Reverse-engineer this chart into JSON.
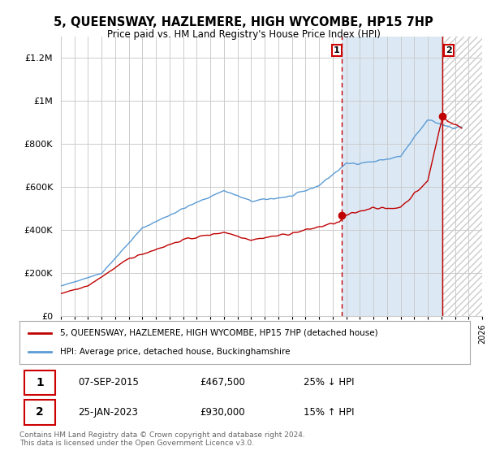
{
  "title": "5, QUEENSWAY, HAZLEMERE, HIGH WYCOMBE, HP15 7HP",
  "subtitle": "Price paid vs. HM Land Registry's House Price Index (HPI)",
  "legend_line1": "5, QUEENSWAY, HAZLEMERE, HIGH WYCOMBE, HP15 7HP (detached house)",
  "legend_line2": "HPI: Average price, detached house, Buckinghamshire",
  "transaction1_date": "07-SEP-2015",
  "transaction1_price": "£467,500",
  "transaction1_hpi": "25% ↓ HPI",
  "transaction2_date": "25-JAN-2023",
  "transaction2_price": "£930,000",
  "transaction2_hpi": "15% ↑ HPI",
  "footnote": "Contains HM Land Registry data © Crown copyright and database right 2024.\nThis data is licensed under the Open Government Licence v3.0.",
  "hpi_color": "#5b9bd5",
  "price_color": "#c00000",
  "background_fig": "#ffffff",
  "background_plot": "#ffffff",
  "grid_color": "#cccccc",
  "shade_between_color": "#dce9f5",
  "hatch_color": "#cccccc",
  "ylim": [
    0,
    1300000
  ],
  "yticks": [
    0,
    200000,
    400000,
    600000,
    800000,
    1000000,
    1200000
  ],
  "xlim_start": 1995.0,
  "xlim_end": 2026.0,
  "transaction1_x": 2015.69,
  "transaction1_y": 467500,
  "transaction2_x": 2023.07,
  "transaction2_y": 930000,
  "data_end_x": 2024.5
}
